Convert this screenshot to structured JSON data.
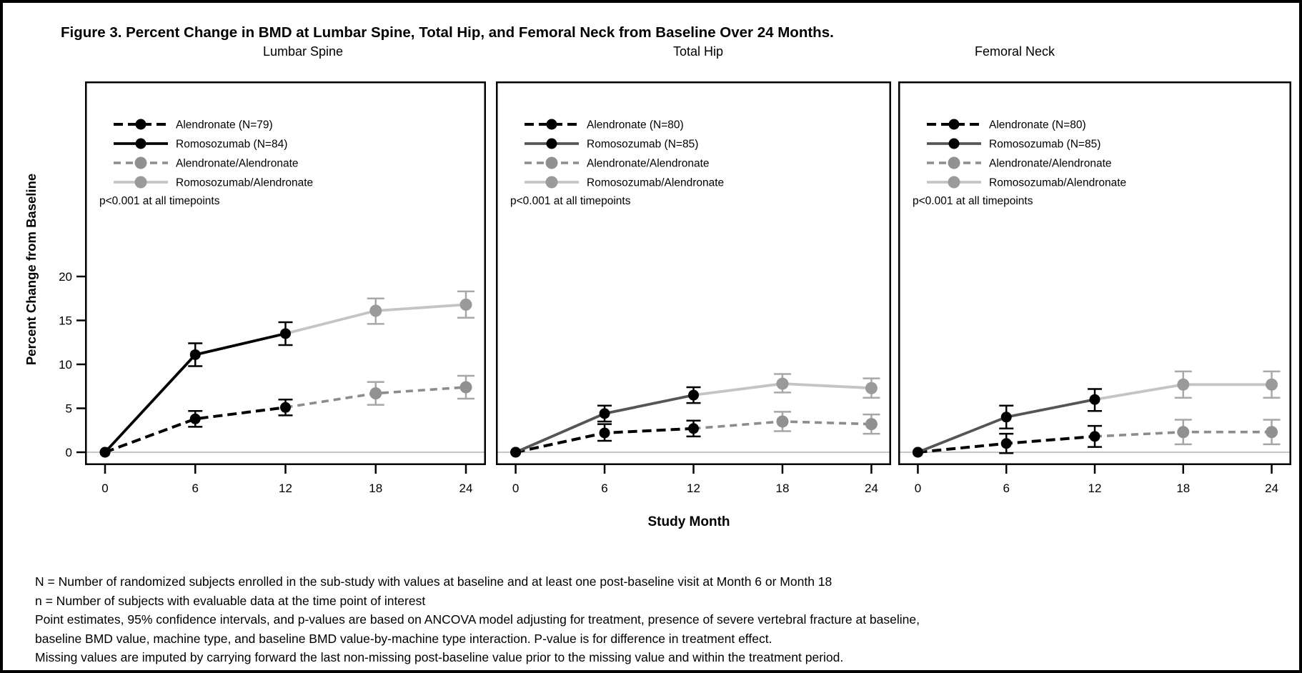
{
  "figure": {
    "title": "Figure 3. Percent Change in BMD at Lumbar Spine, Total Hip, and Femoral Neck from Baseline Over 24 Months.",
    "x_axis_label": "Study Month",
    "y_axis_label": "Percent Change from Baseline"
  },
  "footnotes": [
    "N = Number of randomized subjects enrolled in the sub-study with values at baseline and at least one post-baseline visit at Month 6 or Month 18",
    "n = Number of subjects with evaluable data at the time point of interest",
    "Point estimates, 95% confidence intervals, and p-values are based on ANCOVA model adjusting for treatment, presence of severe vertebral fracture at baseline,",
    "baseline BMD value, machine type, and baseline BMD value-by-machine type interaction. P-value is for difference in treatment effect.",
    "Missing values are imputed by carrying forward the last non-missing post-baseline value prior to the missing value and within the treatment period."
  ],
  "colors": {
    "frame": "#000000",
    "text": "#000000",
    "zero_line": "#c6c6c6"
  },
  "chart_data": {
    "type": "line",
    "x_ticks": [
      0,
      6,
      12,
      18,
      24
    ],
    "y_ticks": [
      0,
      5,
      10,
      15,
      20
    ],
    "xlabel": "Study Month",
    "ylabel": "Percent Change from Baseline",
    "error_bars": "95% confidence intervals",
    "note": "point format: [month, value, ci_low, ci_high, marker_drawn]",
    "charts": [
      {
        "title": "Lumbar Spine",
        "p_note": "p<0.001 at all timepoints",
        "series": [
          {
            "name": "Alendronate (N=79)",
            "style": "dashed",
            "dash": "13 7",
            "line_width": 4,
            "line_color": "#000000",
            "marker_color": "#000000",
            "marker_r": 7.5,
            "err_color": "#000000",
            "err_cap": 10,
            "points": [
              [
                0,
                0.0,
                null,
                null,
                1
              ],
              [
                6,
                3.8,
                2.9,
                4.7,
                1
              ],
              [
                12,
                5.1,
                4.2,
                6.0,
                1
              ]
            ]
          },
          {
            "name": "Romosozumab (N=84)",
            "style": "solid",
            "dash": null,
            "line_width": 3.8,
            "line_color": "#000000",
            "marker_color": "#000000",
            "marker_r": 7.5,
            "err_color": "#000000",
            "err_cap": 10,
            "points": [
              [
                0,
                0.0,
                null,
                null,
                1
              ],
              [
                6,
                11.1,
                9.8,
                12.4,
                1
              ],
              [
                12,
                13.5,
                12.2,
                14.8,
                1
              ]
            ]
          },
          {
            "name": "Alendronate/Alendronate",
            "style": "dashed",
            "dash": "10 7",
            "line_width": 3.6,
            "line_color": "#8c8c8c",
            "marker_color": "#919191",
            "marker_r": 8.5,
            "err_color": "#a6a6a6",
            "err_cap": 12,
            "points": [
              [
                12,
                5.1,
                null,
                null,
                0
              ],
              [
                18,
                6.7,
                5.4,
                8.0,
                1
              ],
              [
                24,
                7.4,
                6.1,
                8.7,
                1
              ]
            ]
          },
          {
            "name": "Romosozumab/Alendronate",
            "style": "solid",
            "dash": null,
            "line_width": 3.8,
            "line_color": "#c4c4c4",
            "marker_color": "#9a9a9a",
            "marker_r": 8.5,
            "err_color": "#a9a9a9",
            "err_cap": 12,
            "points": [
              [
                12,
                13.5,
                null,
                null,
                0
              ],
              [
                18,
                16.1,
                14.6,
                17.5,
                1
              ],
              [
                24,
                16.8,
                15.3,
                18.3,
                1
              ]
            ]
          }
        ]
      },
      {
        "title": "Total Hip",
        "p_note": "p<0.001 at all timepoints",
        "series": [
          {
            "name": "Alendronate (N=80)",
            "style": "dashed",
            "dash": "13 7",
            "line_width": 4,
            "line_color": "#000000",
            "marker_color": "#000000",
            "marker_r": 7.5,
            "err_color": "#000000",
            "err_cap": 10,
            "points": [
              [
                0,
                0.0,
                null,
                null,
                1
              ],
              [
                6,
                2.2,
                1.3,
                3.2,
                1
              ],
              [
                12,
                2.7,
                1.8,
                3.6,
                1
              ]
            ]
          },
          {
            "name": "Romosozumab (N=85)",
            "style": "solid",
            "dash": null,
            "line_width": 3.8,
            "line_color": "#555555",
            "marker_color": "#000000",
            "marker_r": 7.5,
            "err_color": "#000000",
            "err_cap": 10,
            "points": [
              [
                0,
                0.0,
                null,
                null,
                1
              ],
              [
                6,
                4.4,
                3.5,
                5.3,
                1
              ],
              [
                12,
                6.5,
                5.6,
                7.4,
                1
              ]
            ]
          },
          {
            "name": "Alendronate/Alendronate",
            "style": "dashed",
            "dash": "10 7",
            "line_width": 3.6,
            "line_color": "#8c8c8c",
            "marker_color": "#919191",
            "marker_r": 8.5,
            "err_color": "#a6a6a6",
            "err_cap": 12,
            "points": [
              [
                12,
                2.7,
                null,
                null,
                0
              ],
              [
                18,
                3.5,
                2.4,
                4.6,
                1
              ],
              [
                24,
                3.2,
                2.1,
                4.3,
                1
              ]
            ]
          },
          {
            "name": "Romosozumab/Alendronate",
            "style": "solid",
            "dash": null,
            "line_width": 3.8,
            "line_color": "#c4c4c4",
            "marker_color": "#9a9a9a",
            "marker_r": 8.5,
            "err_color": "#a9a9a9",
            "err_cap": 12,
            "points": [
              [
                12,
                6.5,
                null,
                null,
                0
              ],
              [
                18,
                7.8,
                6.8,
                8.9,
                1
              ],
              [
                24,
                7.3,
                6.2,
                8.4,
                1
              ]
            ]
          }
        ]
      },
      {
        "title": "Femoral Neck",
        "p_note": "p<0.001 at all timepoints",
        "series": [
          {
            "name": "Alendronate (N=80)",
            "style": "dashed",
            "dash": "13 7",
            "line_width": 4,
            "line_color": "#000000",
            "marker_color": "#000000",
            "marker_r": 7.5,
            "err_color": "#000000",
            "err_cap": 10,
            "points": [
              [
                0,
                0.0,
                null,
                null,
                1
              ],
              [
                6,
                1.0,
                -0.1,
                2.1,
                1
              ],
              [
                12,
                1.8,
                0.6,
                3.0,
                1
              ]
            ]
          },
          {
            "name": "Romosozumab (N=85)",
            "style": "solid",
            "dash": null,
            "line_width": 3.8,
            "line_color": "#555555",
            "marker_color": "#000000",
            "marker_r": 7.5,
            "err_color": "#000000",
            "err_cap": 10,
            "points": [
              [
                0,
                0.0,
                null,
                null,
                1
              ],
              [
                6,
                4.0,
                2.7,
                5.3,
                1
              ],
              [
                12,
                6.0,
                4.7,
                7.2,
                1
              ]
            ]
          },
          {
            "name": "Alendronate/Alendronate",
            "style": "dashed",
            "dash": "10 7",
            "line_width": 3.6,
            "line_color": "#8c8c8c",
            "marker_color": "#919191",
            "marker_r": 8.5,
            "err_color": "#a6a6a6",
            "err_cap": 12,
            "points": [
              [
                12,
                1.8,
                null,
                null,
                0
              ],
              [
                18,
                2.3,
                0.9,
                3.7,
                1
              ],
              [
                24,
                2.3,
                0.9,
                3.7,
                1
              ]
            ]
          },
          {
            "name": "Romosozumab/Alendronate",
            "style": "solid",
            "dash": null,
            "line_width": 3.8,
            "line_color": "#c4c4c4",
            "marker_color": "#9a9a9a",
            "marker_r": 8.5,
            "err_color": "#a9a9a9",
            "err_cap": 12,
            "points": [
              [
                12,
                6.0,
                null,
                null,
                0
              ],
              [
                18,
                7.7,
                6.2,
                9.2,
                1
              ],
              [
                24,
                7.7,
                6.2,
                9.2,
                1
              ]
            ]
          }
        ]
      }
    ]
  }
}
